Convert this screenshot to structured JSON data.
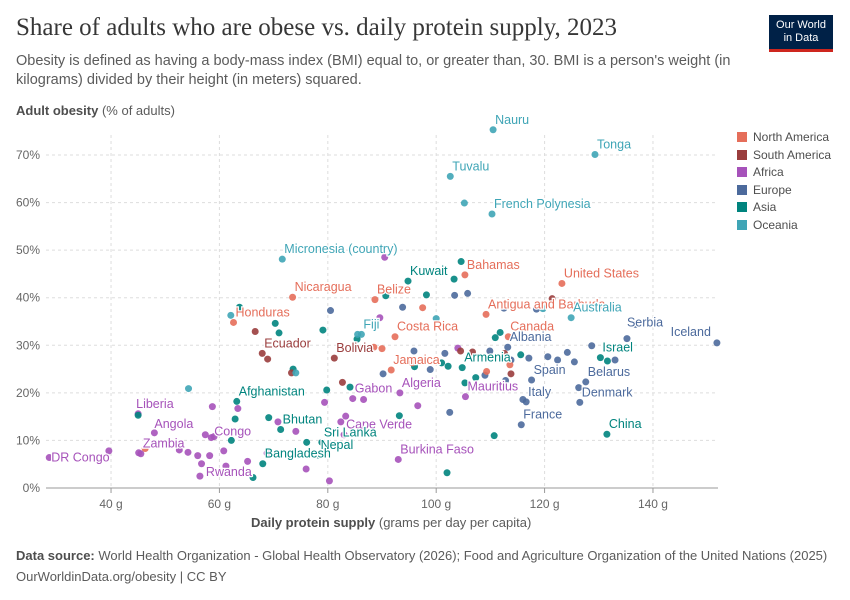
{
  "header": {
    "title": "Share of adults who are obese vs. daily protein supply, 2023",
    "subtitle": "Obesity is defined as having a body-mass index (BMI) equal to, or greater than, 30. BMI is a person's weight (in kilograms) divided by their height (in meters) squared."
  },
  "logo": {
    "line1": "Our World",
    "line2": "in Data"
  },
  "axes": {
    "y_title": "Adult obesity",
    "y_unit": "(% of adults)",
    "x_title": "Daily protein supply",
    "x_unit": "(grams per day per capita)"
  },
  "footer": {
    "source_label": "Data source:",
    "source_text": "World Health Organization - Global Health Observatory (2026); Food and Agriculture Organization of the United Nations (2025)",
    "link_text": "OurWorldinData.org/obesity | CC BY"
  },
  "colors": {
    "North America": "#e56e5a",
    "South America": "#9a3d3d",
    "Africa": "#a652ba",
    "Europe": "#4c6a9c",
    "Asia": "#00847e",
    "Oceania": "#3fa5b6"
  },
  "chart_data": {
    "type": "scatter",
    "title": "Share of adults who are obese vs. daily protein supply, 2023",
    "xlabel": "Daily protein supply (grams per day per capita)",
    "ylabel": "Adult obesity (% of adults)",
    "xlim": [
      28,
      152
    ],
    "ylim": [
      0,
      76
    ],
    "x_ticks": [
      40,
      60,
      80,
      100,
      120,
      140
    ],
    "x_tick_labels": [
      "40 g",
      "60 g",
      "80 g",
      "100 g",
      "120 g",
      "140 g"
    ],
    "y_ticks": [
      0,
      10,
      20,
      30,
      40,
      50,
      60,
      70
    ],
    "y_tick_labels": [
      "0%",
      "10%",
      "20%",
      "30%",
      "40%",
      "50%",
      "60%",
      "70%"
    ],
    "grid": true,
    "legend_position": "right",
    "legend": [
      "North America",
      "South America",
      "Africa",
      "Europe",
      "Asia",
      "Oceania"
    ],
    "points": [
      {
        "label": "Nauru",
        "region": "Oceania",
        "x": 110.5,
        "y": 75.3
      },
      {
        "label": "Tonga",
        "region": "Oceania",
        "x": 129.3,
        "y": 70.1
      },
      {
        "label": "Tuvalu",
        "region": "Oceania",
        "x": 102.6,
        "y": 65.5
      },
      {
        "label": "French Polynesia",
        "region": "Oceania",
        "x": 110.3,
        "y": 57.6
      },
      {
        "label": "Micronesia (country)",
        "region": "Oceania",
        "x": 71.6,
        "y": 48.1
      },
      {
        "label": "Kuwait",
        "region": "Asia",
        "x": 94.8,
        "y": 43.5
      },
      {
        "label": "Bahamas",
        "region": "North America",
        "x": 105.3,
        "y": 44.8
      },
      {
        "label": "United States",
        "region": "North America",
        "x": 123.2,
        "y": 43.0
      },
      {
        "label": "Nicaragua",
        "region": "North America",
        "x": 73.5,
        "y": 40.1
      },
      {
        "label": "Belize",
        "region": "North America",
        "x": 88.7,
        "y": 39.6
      },
      {
        "label": "Antigua and Barbuda",
        "region": "North America",
        "x": 109.2,
        "y": 36.5
      },
      {
        "label": "Australia",
        "region": "Oceania",
        "x": 124.9,
        "y": 35.8
      },
      {
        "label": "Honduras",
        "region": "North America",
        "x": 62.6,
        "y": 34.8
      },
      {
        "label": "Fiji",
        "region": "Oceania",
        "x": 86.2,
        "y": 32.3
      },
      {
        "label": "Costa Rica",
        "region": "North America",
        "x": 92.4,
        "y": 31.8
      },
      {
        "label": "Canada",
        "region": "North America",
        "x": 113.3,
        "y": 31.8
      },
      {
        "label": "Serbia",
        "region": "Europe",
        "x": 135.2,
        "y": 31.4
      },
      {
        "label": "Iceland",
        "region": "Europe",
        "x": 151.8,
        "y": 30.5
      },
      {
        "label": "Ecuador",
        "region": "South America",
        "x": 67.9,
        "y": 28.3
      },
      {
        "label": "Bolivia",
        "region": "South America",
        "x": 81.2,
        "y": 27.3
      },
      {
        "label": "Albania",
        "region": "Europe",
        "x": 113.2,
        "y": 29.6
      },
      {
        "label": "Israel",
        "region": "Asia",
        "x": 130.3,
        "y": 27.4
      },
      {
        "label": "Armenia",
        "region": "Asia",
        "x": 104.8,
        "y": 25.3
      },
      {
        "label": "Jamaica",
        "region": "North America",
        "x": 91.7,
        "y": 24.8
      },
      {
        "label": "Spain",
        "region": "Europe",
        "x": 117.6,
        "y": 22.7
      },
      {
        "label": "Belarus",
        "region": "Europe",
        "x": 127.6,
        "y": 22.3
      },
      {
        "label": "Algeria",
        "region": "Africa",
        "x": 93.3,
        "y": 20.0
      },
      {
        "label": "Mauritius",
        "region": "Africa",
        "x": 105.4,
        "y": 19.2
      },
      {
        "label": "Gabon",
        "region": "Africa",
        "x": 84.6,
        "y": 18.8
      },
      {
        "label": "Afghanistan",
        "region": "Asia",
        "x": 63.2,
        "y": 18.2
      },
      {
        "label": "Italy",
        "region": "Europe",
        "x": 116.6,
        "y": 18.1
      },
      {
        "label": "Denmark",
        "region": "Europe",
        "x": 126.5,
        "y": 18.0
      },
      {
        "label": "Liberia",
        "region": "Africa",
        "x": 45.0,
        "y": 15.6
      },
      {
        "label": "France",
        "region": "Europe",
        "x": 115.7,
        "y": 13.3
      },
      {
        "label": "Bhutan",
        "region": "Asia",
        "x": 71.3,
        "y": 12.3
      },
      {
        "label": "Angola",
        "region": "Africa",
        "x": 48.0,
        "y": 11.6
      },
      {
        "label": "Congo",
        "region": "Africa",
        "x": 58.5,
        "y": 10.6
      },
      {
        "label": "Cape Verde",
        "region": "Africa",
        "x": 83.0,
        "y": 11.2
      },
      {
        "label": "China",
        "region": "Asia",
        "x": 131.5,
        "y": 11.3
      },
      {
        "label": "Sri Lanka",
        "region": "Asia",
        "x": 78.9,
        "y": 9.6
      },
      {
        "label": "Zambia",
        "region": "Africa",
        "x": 45.5,
        "y": 7.2
      },
      {
        "label": "Nepal",
        "region": "Asia",
        "x": 78.3,
        "y": 6.9
      },
      {
        "label": "DR Congo",
        "region": "Africa",
        "x": 28.6,
        "y": 6.4
      },
      {
        "label": "Burkina Faso",
        "region": "Africa",
        "x": 93.0,
        "y": 6.0
      },
      {
        "label": "Bangladesh",
        "region": "Asia",
        "x": 68.0,
        "y": 5.1
      },
      {
        "label": "Rwanda",
        "region": "Africa",
        "x": 61.2,
        "y": 4.6
      },
      {
        "label": "",
        "region": "Africa",
        "x": 39.6,
        "y": 7.8
      },
      {
        "label": "",
        "region": "Africa",
        "x": 45.1,
        "y": 7.4
      },
      {
        "label": "",
        "region": "Africa",
        "x": 52.6,
        "y": 8.0
      },
      {
        "label": "",
        "region": "Africa",
        "x": 54.2,
        "y": 7.5
      },
      {
        "label": "",
        "region": "Africa",
        "x": 56.0,
        "y": 6.8
      },
      {
        "label": "",
        "region": "Africa",
        "x": 56.7,
        "y": 5.1
      },
      {
        "label": "",
        "region": "Africa",
        "x": 57.4,
        "y": 11.2
      },
      {
        "label": "",
        "region": "Africa",
        "x": 58.2,
        "y": 6.8
      },
      {
        "label": "",
        "region": "Africa",
        "x": 59.0,
        "y": 10.8
      },
      {
        "label": "",
        "region": "Africa",
        "x": 60.8,
        "y": 7.8
      },
      {
        "label": "",
        "region": "Africa",
        "x": 58.7,
        "y": 17.1
      },
      {
        "label": "",
        "region": "Africa",
        "x": 63.4,
        "y": 16.7
      },
      {
        "label": "",
        "region": "Africa",
        "x": 56.4,
        "y": 2.5
      },
      {
        "label": "",
        "region": "Africa",
        "x": 65.2,
        "y": 5.6
      },
      {
        "label": "",
        "region": "Africa",
        "x": 68.8,
        "y": 7.3
      },
      {
        "label": "",
        "region": "Africa",
        "x": 70.8,
        "y": 13.9
      },
      {
        "label": "",
        "region": "Africa",
        "x": 74.1,
        "y": 11.9
      },
      {
        "label": "",
        "region": "Africa",
        "x": 76.0,
        "y": 4.0
      },
      {
        "label": "",
        "region": "Africa",
        "x": 79.4,
        "y": 18.0
      },
      {
        "label": "",
        "region": "Africa",
        "x": 80.3,
        "y": 1.5
      },
      {
        "label": "",
        "region": "Africa",
        "x": 82.4,
        "y": 13.9
      },
      {
        "label": "",
        "region": "Africa",
        "x": 83.3,
        "y": 15.1
      },
      {
        "label": "",
        "region": "Africa",
        "x": 86.6,
        "y": 18.6
      },
      {
        "label": "",
        "region": "Africa",
        "x": 89.6,
        "y": 35.8
      },
      {
        "label": "",
        "region": "Africa",
        "x": 90.5,
        "y": 48.5
      },
      {
        "label": "",
        "region": "Africa",
        "x": 96.6,
        "y": 17.3
      },
      {
        "label": "",
        "region": "Africa",
        "x": 100.0,
        "y": 22.0
      },
      {
        "label": "",
        "region": "Africa",
        "x": 104.0,
        "y": 29.4
      },
      {
        "label": "",
        "region": "Asia",
        "x": 45.0,
        "y": 15.3
      },
      {
        "label": "",
        "region": "Asia",
        "x": 62.2,
        "y": 10.0
      },
      {
        "label": "",
        "region": "Asia",
        "x": 62.9,
        "y": 14.5
      },
      {
        "label": "",
        "region": "Asia",
        "x": 63.7,
        "y": 38.0
      },
      {
        "label": "",
        "region": "Asia",
        "x": 66.2,
        "y": 2.2
      },
      {
        "label": "",
        "region": "Asia",
        "x": 69.1,
        "y": 14.8
      },
      {
        "label": "",
        "region": "Asia",
        "x": 70.3,
        "y": 34.6
      },
      {
        "label": "",
        "region": "Asia",
        "x": 71.0,
        "y": 32.6
      },
      {
        "label": "",
        "region": "Asia",
        "x": 73.6,
        "y": 25.0
      },
      {
        "label": "",
        "region": "Asia",
        "x": 76.1,
        "y": 9.6
      },
      {
        "label": "",
        "region": "Asia",
        "x": 79.1,
        "y": 33.2
      },
      {
        "label": "",
        "region": "Asia",
        "x": 79.8,
        "y": 20.6
      },
      {
        "label": "",
        "region": "Asia",
        "x": 84.1,
        "y": 21.2
      },
      {
        "label": "",
        "region": "Asia",
        "x": 85.4,
        "y": 31.3
      },
      {
        "label": "",
        "region": "Asia",
        "x": 90.7,
        "y": 40.4
      },
      {
        "label": "",
        "region": "Asia",
        "x": 93.2,
        "y": 15.2
      },
      {
        "label": "",
        "region": "Asia",
        "x": 96.0,
        "y": 25.5
      },
      {
        "label": "",
        "region": "Asia",
        "x": 98.2,
        "y": 40.6
      },
      {
        "label": "",
        "region": "Asia",
        "x": 101.0,
        "y": 26.3
      },
      {
        "label": "",
        "region": "Asia",
        "x": 102.2,
        "y": 25.6
      },
      {
        "label": "",
        "region": "Asia",
        "x": 102.0,
        "y": 3.2
      },
      {
        "label": "",
        "region": "Asia",
        "x": 103.3,
        "y": 43.9
      },
      {
        "label": "",
        "region": "Asia",
        "x": 104.6,
        "y": 47.6
      },
      {
        "label": "",
        "region": "Asia",
        "x": 105.3,
        "y": 22.1
      },
      {
        "label": "",
        "region": "Asia",
        "x": 107.3,
        "y": 23.2
      },
      {
        "label": "",
        "region": "Asia",
        "x": 110.7,
        "y": 11.0
      },
      {
        "label": "",
        "region": "Asia",
        "x": 110.9,
        "y": 31.6
      },
      {
        "label": "",
        "region": "Asia",
        "x": 111.8,
        "y": 32.7
      },
      {
        "label": "",
        "region": "Asia",
        "x": 115.6,
        "y": 28.0
      },
      {
        "label": "",
        "region": "Asia",
        "x": 131.6,
        "y": 26.7
      },
      {
        "label": "",
        "region": "Europe",
        "x": 80.5,
        "y": 37.3
      },
      {
        "label": "",
        "region": "Europe",
        "x": 90.2,
        "y": 24.0
      },
      {
        "label": "",
        "region": "Europe",
        "x": 93.8,
        "y": 38.0
      },
      {
        "label": "",
        "region": "Europe",
        "x": 95.9,
        "y": 28.8
      },
      {
        "label": "",
        "region": "Europe",
        "x": 98.9,
        "y": 24.9
      },
      {
        "label": "",
        "region": "Europe",
        "x": 101.6,
        "y": 28.3
      },
      {
        "label": "",
        "region": "Europe",
        "x": 102.5,
        "y": 15.9
      },
      {
        "label": "",
        "region": "Europe",
        "x": 103.4,
        "y": 40.5
      },
      {
        "label": "",
        "region": "Europe",
        "x": 105.8,
        "y": 40.9
      },
      {
        "label": "",
        "region": "Europe",
        "x": 109.0,
        "y": 23.7
      },
      {
        "label": "",
        "region": "Europe",
        "x": 109.9,
        "y": 28.8
      },
      {
        "label": "",
        "region": "Europe",
        "x": 112.5,
        "y": 37.8
      },
      {
        "label": "",
        "region": "Europe",
        "x": 112.8,
        "y": 22.6
      },
      {
        "label": "",
        "region": "Europe",
        "x": 113.8,
        "y": 26.9
      },
      {
        "label": "",
        "region": "Europe",
        "x": 116.0,
        "y": 18.6
      },
      {
        "label": "",
        "region": "Europe",
        "x": 117.1,
        "y": 27.3
      },
      {
        "label": "",
        "region": "Europe",
        "x": 118.5,
        "y": 37.6
      },
      {
        "label": "",
        "region": "Europe",
        "x": 120.6,
        "y": 27.6
      },
      {
        "label": "",
        "region": "Europe",
        "x": 122.4,
        "y": 26.9
      },
      {
        "label": "",
        "region": "Europe",
        "x": 124.2,
        "y": 28.5
      },
      {
        "label": "",
        "region": "Europe",
        "x": 125.5,
        "y": 26.5
      },
      {
        "label": "",
        "region": "Europe",
        "x": 126.3,
        "y": 21.1
      },
      {
        "label": "",
        "region": "Europe",
        "x": 128.7,
        "y": 29.9
      },
      {
        "label": "",
        "region": "Europe",
        "x": 133.0,
        "y": 26.9
      },
      {
        "label": "",
        "region": "Europe",
        "x": 136.8,
        "y": 34.4
      },
      {
        "label": "",
        "region": "North America",
        "x": 46.3,
        "y": 8.3
      },
      {
        "label": "",
        "region": "North America",
        "x": 88.5,
        "y": 29.6
      },
      {
        "label": "",
        "region": "North America",
        "x": 90.0,
        "y": 29.3
      },
      {
        "label": "",
        "region": "North America",
        "x": 95.6,
        "y": 26.3
      },
      {
        "label": "",
        "region": "North America",
        "x": 97.5,
        "y": 37.9
      },
      {
        "label": "",
        "region": "North America",
        "x": 109.3,
        "y": 24.5
      },
      {
        "label": "",
        "region": "North America",
        "x": 113.6,
        "y": 25.9
      },
      {
        "label": "",
        "region": "South America",
        "x": 66.6,
        "y": 32.9
      },
      {
        "label": "",
        "region": "South America",
        "x": 68.9,
        "y": 27.1
      },
      {
        "label": "",
        "region": "South America",
        "x": 73.3,
        "y": 24.2
      },
      {
        "label": "",
        "region": "South America",
        "x": 82.7,
        "y": 22.2
      },
      {
        "label": "",
        "region": "South America",
        "x": 104.5,
        "y": 28.8
      },
      {
        "label": "",
        "region": "South America",
        "x": 106.7,
        "y": 28.6
      },
      {
        "label": "",
        "region": "South America",
        "x": 112.6,
        "y": 28.3
      },
      {
        "label": "",
        "region": "South America",
        "x": 113.8,
        "y": 24.0
      },
      {
        "label": "",
        "region": "South America",
        "x": 121.4,
        "y": 39.8
      },
      {
        "label": "",
        "region": "Oceania",
        "x": 54.3,
        "y": 20.9
      },
      {
        "label": "",
        "region": "Oceania",
        "x": 62.1,
        "y": 36.3
      },
      {
        "label": "",
        "region": "Oceania",
        "x": 74.1,
        "y": 24.2
      },
      {
        "label": "",
        "region": "Oceania",
        "x": 85.5,
        "y": 32.3
      },
      {
        "label": "",
        "region": "Oceania",
        "x": 105.2,
        "y": 59.9
      },
      {
        "label": "",
        "region": "Oceania",
        "x": 100.0,
        "y": 35.6
      },
      {
        "label": "",
        "region": "Oceania",
        "x": 119.7,
        "y": 37.7
      }
    ]
  }
}
